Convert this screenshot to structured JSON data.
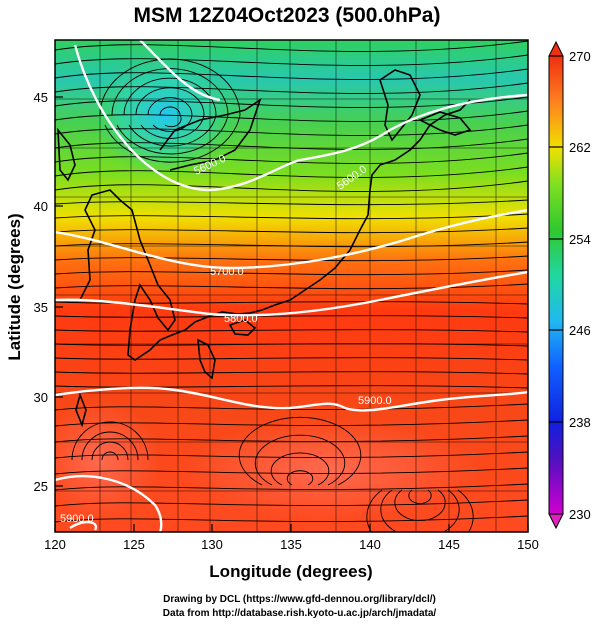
{
  "title": "MSM 12Z04Oct2023 (500.0hPa)",
  "x_axis": {
    "label": "Longitude (degrees)",
    "ticks": [
      "120",
      "125",
      "130",
      "135",
      "140",
      "145",
      "150"
    ]
  },
  "y_axis": {
    "label": "Latitude  (degrees)",
    "ticks": [
      "25",
      "30",
      "35",
      "40",
      "45"
    ]
  },
  "colorbar": {
    "ticks": [
      "230",
      "238",
      "246",
      "254",
      "262",
      "270"
    ],
    "min": 230,
    "max": 270
  },
  "contours": {
    "labels": [
      "5900.0",
      "5900.0",
      "5800.0",
      "5600.0",
      "5700.0",
      "5600.0"
    ]
  },
  "credits": {
    "line1": "Drawing by DCL (https://www.gfd-dennou.org/library/dcl/)",
    "line2": "Data from http://database.rish.kyoto-u.ac.jp/arch/jmadata/"
  },
  "colors": {
    "cold": "#22c8f0",
    "mid": "#30d030",
    "warm": "#ff4a10",
    "contour": "#ffffff",
    "coast": "#000000"
  }
}
